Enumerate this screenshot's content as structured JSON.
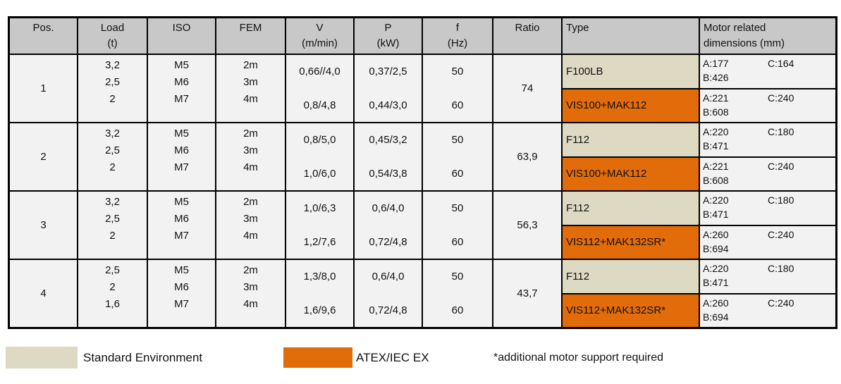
{
  "colors": {
    "header_bg": "#c8c8c8",
    "cell_bg": "#f2f2f2",
    "standard_bg": "#ddd9c3",
    "atex_bg": "#e36c0a",
    "border": "#000000"
  },
  "table": {
    "header": {
      "pos": "Pos.",
      "load_1": "Load",
      "load_2": "(t)",
      "iso": "ISO",
      "fem": "FEM",
      "v_1": "V",
      "v_2": "(m/min)",
      "p_1": "P",
      "p_2": "(kW)",
      "f_1": "f",
      "f_2": "(Hz)",
      "ratio": "Ratio",
      "type": "Type",
      "dims_1": "Motor related",
      "dims_2": "dimensions (mm)"
    },
    "rows": [
      {
        "pos": "1",
        "loads": [
          "3,2",
          "2,5",
          "2"
        ],
        "iso": [
          "M5",
          "M6",
          "M7"
        ],
        "fem": [
          "2m",
          "3m",
          "4m"
        ],
        "v": [
          "0,66//4,0",
          "0,8/4,8"
        ],
        "p": [
          "0,37/2,5",
          "0,44/3,0"
        ],
        "f": [
          "50",
          "60"
        ],
        "ratio": "74",
        "standard": {
          "type": "F100LB",
          "a": "A:177",
          "c": "C:164",
          "b": "B:426"
        },
        "atex": {
          "type": "VIS100+MAK112",
          "a": "A:221",
          "c": "C:240",
          "b": "B:608"
        }
      },
      {
        "pos": "2",
        "loads": [
          "3,2",
          "2,5",
          "2"
        ],
        "iso": [
          "M5",
          "M6",
          "M7"
        ],
        "fem": [
          "2m",
          "3m",
          "4m"
        ],
        "v": [
          "0,8/5,0",
          "1,0/6,0"
        ],
        "p": [
          "0,45/3,2",
          "0,54/3,8"
        ],
        "f": [
          "50",
          "60"
        ],
        "ratio": "63,9",
        "standard": {
          "type": "F112",
          "a": "A:220",
          "c": "C:180",
          "b": "B:471"
        },
        "atex": {
          "type": "VIS100+MAK112",
          "a": "A:221",
          "c": "C:240",
          "b": "B:608"
        }
      },
      {
        "pos": "3",
        "loads": [
          "3,2",
          "2,5",
          "2"
        ],
        "iso": [
          "M5",
          "M6",
          "M7"
        ],
        "fem": [
          "2m",
          "3m",
          "4m"
        ],
        "v": [
          "1,0/6,3",
          "1,2/7,6"
        ],
        "p": [
          "0,6/4,0",
          "0,72/4,8"
        ],
        "f": [
          "50",
          "60"
        ],
        "ratio": "56,3",
        "standard": {
          "type": "F112",
          "a": "A:220",
          "c": "C:180",
          "b": "B:471"
        },
        "atex": {
          "type": "VIS112+MAK132SR*",
          "a": "A:260",
          "c": "C:240",
          "b": "B:694"
        }
      },
      {
        "pos": "4",
        "loads": [
          "2,5",
          "2",
          "1,6"
        ],
        "iso": [
          "M5",
          "M6",
          "M7"
        ],
        "fem": [
          "2m",
          "3m",
          "4m"
        ],
        "v": [
          "1,3/8,0",
          "1,6/9,6"
        ],
        "p": [
          "0,6/4,0",
          "0,72/4,8"
        ],
        "f": [
          "50",
          "60"
        ],
        "ratio": "43,7",
        "standard": {
          "type": "F112",
          "a": "A:220",
          "c": "C:180",
          "b": "B:471"
        },
        "atex": {
          "type": "VIS112+MAK132SR*",
          "a": "A:260",
          "c": "C:240",
          "b": "B:694"
        }
      }
    ]
  },
  "legend": {
    "standard_label": "Standard Environment",
    "atex_label": "ATEX/IEC EX",
    "note": "*additional motor support required"
  }
}
